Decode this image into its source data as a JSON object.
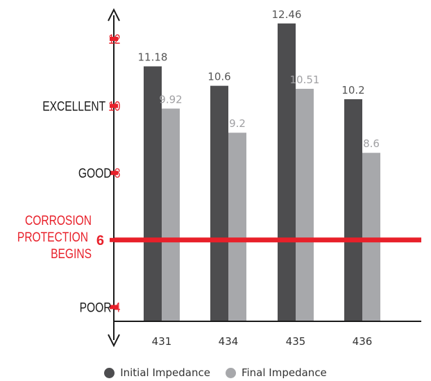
{
  "chart_data": {
    "type": "bar",
    "categories": [
      "431",
      "434",
      "435",
      "436"
    ],
    "series": [
      {
        "name": "Initial Impedance",
        "values": [
          11.18,
          10.6,
          12.46,
          10.2
        ],
        "color": "#4d4d4f"
      },
      {
        "name": "Final Impedance",
        "values": [
          9.92,
          9.2,
          10.51,
          8.6
        ],
        "color": "#a7a8ab"
      }
    ],
    "value_labels": [
      [
        "11.18",
        "10.6",
        "12.46",
        "10.2"
      ],
      [
        "9.92",
        "9.2",
        "10.51",
        "8.6"
      ]
    ],
    "ylim": [
      3,
      13.5
    ],
    "yticks": [
      {
        "value": 12,
        "prefix": "",
        "number": "12"
      },
      {
        "value": 10,
        "prefix": "EXCELLENT",
        "number": "10"
      },
      {
        "value": 8,
        "prefix": "GOOD",
        "number": "8"
      },
      {
        "value": 6,
        "prefix": "",
        "number": "6"
      },
      {
        "value": 4,
        "prefix": "POOR",
        "number": "4"
      }
    ],
    "threshold": {
      "value": 6,
      "label_lines": [
        "CORROSION",
        "PROTECTION",
        "BEGINS"
      ],
      "color": "#e8202a"
    },
    "tick_color": "#e8202a",
    "axis_color": "#1a1a1a",
    "grid": false,
    "legend_position": "bottom"
  },
  "legend": {
    "items": [
      {
        "label": "Initial Impedance",
        "color": "#4d4d4f"
      },
      {
        "label": "Final Impedance",
        "color": "#a7a8ab"
      }
    ]
  }
}
